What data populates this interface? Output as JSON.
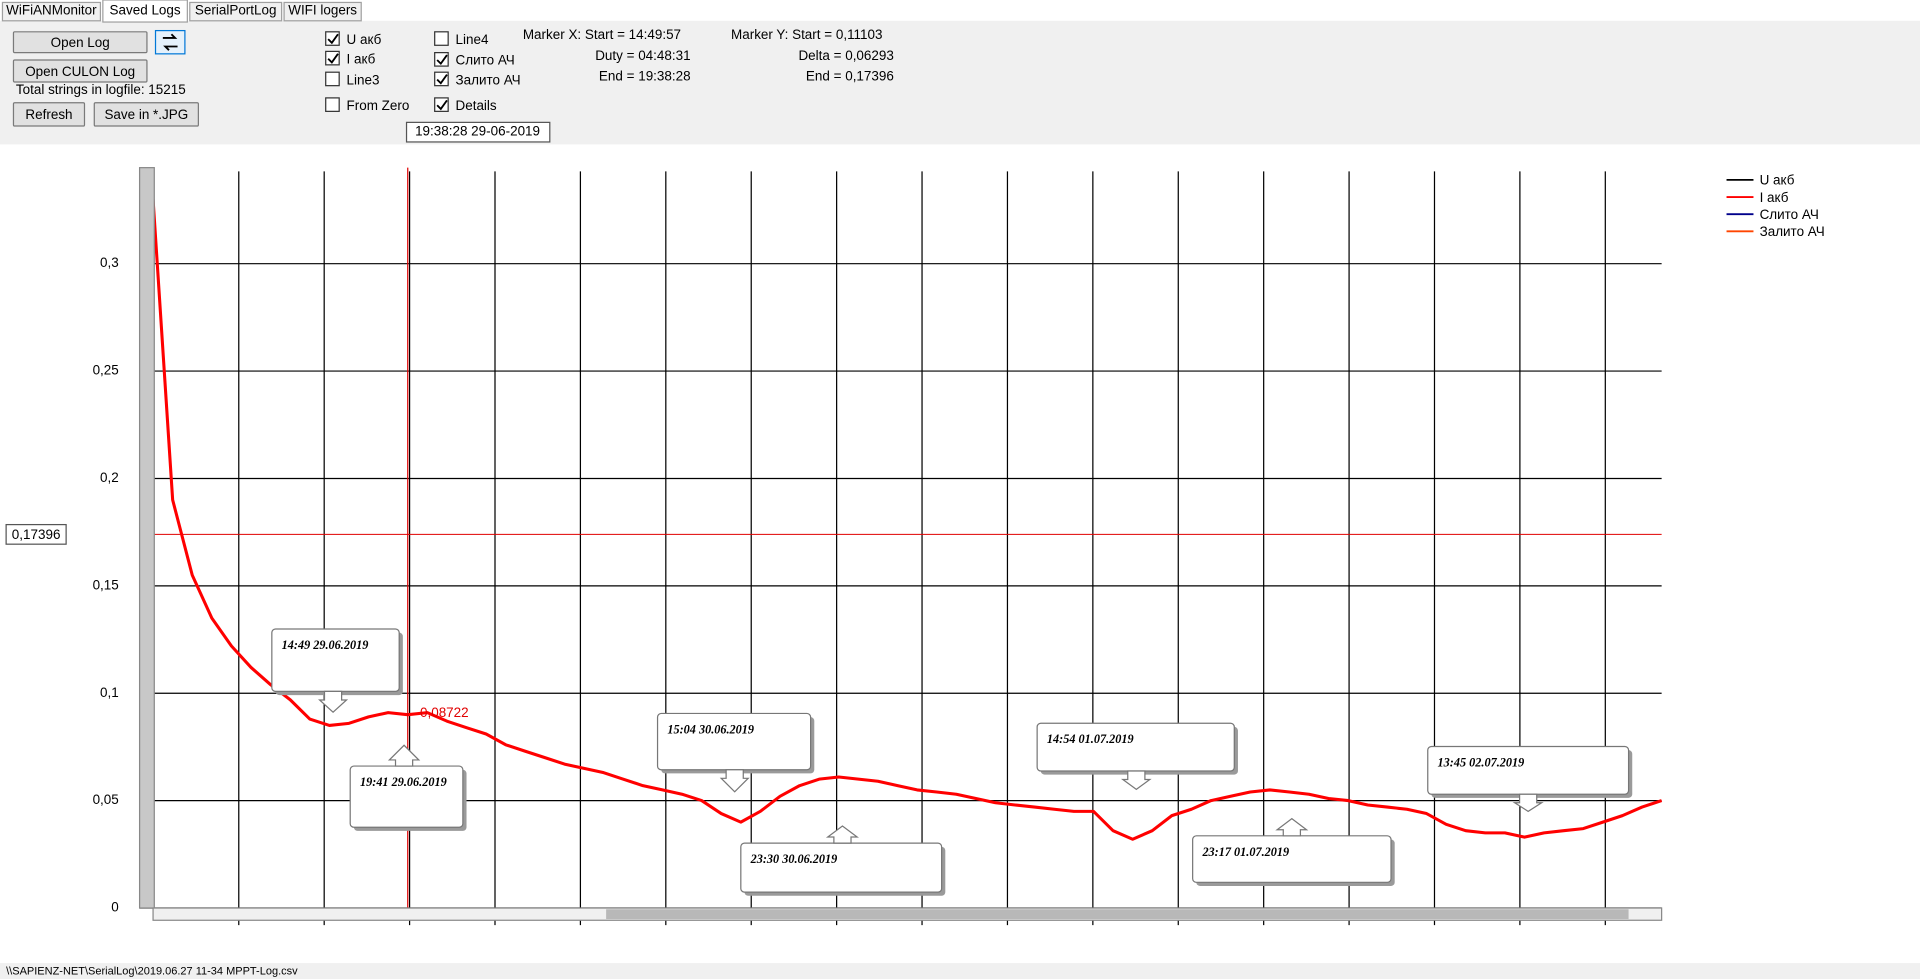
{
  "tabs": [
    "WiFiANMonitor",
    "Saved Logs",
    "SerialPortLog",
    "WIFI logers"
  ],
  "buttons": {
    "open_log": "Open Log",
    "open_culon": "Open CULON Log",
    "refresh": "Refresh",
    "save_jpg": "Save in *.JPG"
  },
  "total_strings": "Total strings in logfile: 15215",
  "checkboxes": [
    {
      "label": "U акб",
      "checked": true
    },
    {
      "label": "I акб",
      "checked": true
    },
    {
      "label": "Line3",
      "checked": false
    },
    {
      "label": "From Zero",
      "checked": false
    },
    {
      "label": "Line4",
      "checked": false
    },
    {
      "label": "Слито АЧ",
      "checked": true
    },
    {
      "label": "Залито АЧ",
      "checked": true
    },
    {
      "label": "Details",
      "checked": true
    }
  ],
  "date_box": "19:38:28 29-06-2019",
  "marker_x": [
    "Marker X: Start = 14:49:57",
    "Duty = 04:48:31",
    "End  = 19:38:28"
  ],
  "marker_y": [
    "Marker Y: Start = 0,11103",
    "Delta = 0,06293",
    "End  = 0,17396"
  ],
  "status": "\\\\SAPIENZ-NET\\SerialLog\\2019.06.27 11-34 MPPT-Log.csv",
  "chart_data": {
    "type": "line",
    "ylim": [
      0,
      0.343
    ],
    "yticks": [
      0,
      {
        "value": 0.05,
        "label": "0,05"
      },
      {
        "value": 0.1,
        "label": "0,1"
      },
      {
        "value": 0.15,
        "label": "0,15"
      },
      {
        "value": 0.2,
        "label": "0,2"
      },
      {
        "value": 0.25,
        "label": "0,25"
      },
      {
        "value": 0.3,
        "label": "0,3"
      }
    ],
    "grid": true,
    "legend": [
      {
        "name": "U акб",
        "color": "#000000"
      },
      {
        "name": "I акб",
        "color": "#ff0000"
      },
      {
        "name": "Слито АЧ",
        "color": "#00008b"
      },
      {
        "name": "Залито АЧ",
        "color": "#ff4500"
      }
    ],
    "series": [
      {
        "name": "I акб",
        "color": "#ff0000",
        "values": [
          0.33,
          0.19,
          0.155,
          0.135,
          0.122,
          0.112,
          0.104,
          0.097,
          0.088,
          0.085,
          0.086,
          0.089,
          0.091,
          0.09,
          0.091,
          0.087,
          0.084,
          0.081,
          0.076,
          0.073,
          0.07,
          0.067,
          0.065,
          0.063,
          0.06,
          0.057,
          0.055,
          0.053,
          0.05,
          0.044,
          0.04,
          0.045,
          0.052,
          0.057,
          0.06,
          0.061,
          0.06,
          0.059,
          0.057,
          0.055,
          0.054,
          0.053,
          0.051,
          0.049,
          0.048,
          0.047,
          0.046,
          0.045,
          0.045,
          0.036,
          0.032,
          0.036,
          0.043,
          0.046,
          0.05,
          0.052,
          0.054,
          0.055,
          0.054,
          0.053,
          0.051,
          0.05,
          0.048,
          0.047,
          0.046,
          0.044,
          0.039,
          0.036,
          0.035,
          0.035,
          0.033,
          0.035,
          0.036,
          0.037,
          0.04,
          0.043,
          0.047,
          0.05
        ]
      }
    ],
    "marker_line": {
      "value": 0.17396,
      "label": "0,17396"
    },
    "marker_value": "0,08722",
    "annotations": [
      "14:49 29.06.2019",
      "19:41 29.06.2019",
      "15:04 30.06.2019",
      "23:30 30.06.2019",
      "14:54  01.07.2019",
      "23:17 01.07.2019",
      "13:45 02.07.2019"
    ]
  }
}
